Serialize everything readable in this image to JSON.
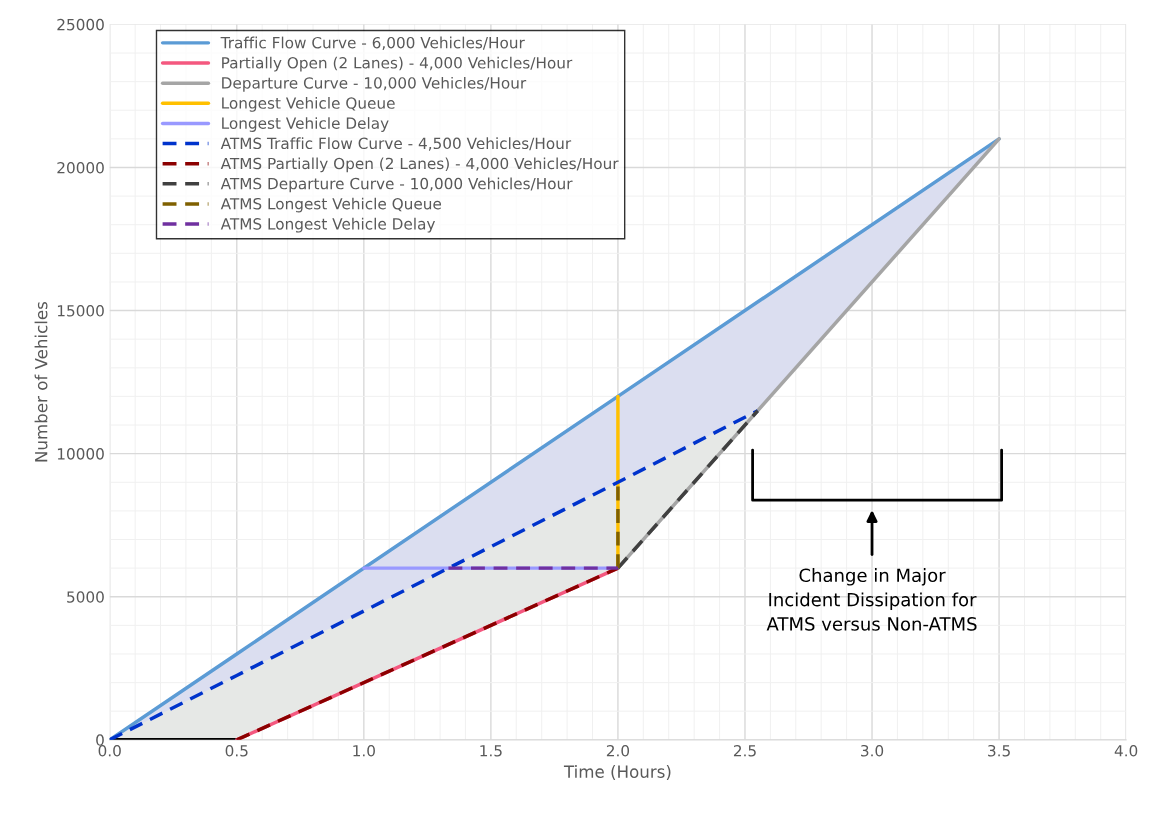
{
  "chart_data": {
    "type": "line",
    "xlabel": "Time (Hours)",
    "ylabel": "Number of Vehicles",
    "xlim": [
      0,
      4
    ],
    "ylim": [
      0,
      25000
    ],
    "xticks": [
      {
        "value": 0,
        "label": "0.0"
      },
      {
        "value": 0.5,
        "label": "0.5"
      },
      {
        "value": 1,
        "label": "1.0"
      },
      {
        "value": 1.5,
        "label": "1.5"
      },
      {
        "value": 2,
        "label": "2.0"
      },
      {
        "value": 2.5,
        "label": "2.5"
      },
      {
        "value": 3,
        "label": "3.0"
      },
      {
        "value": 3.5,
        "label": "3.5"
      },
      {
        "value": 4,
        "label": "4.0"
      }
    ],
    "yticks": [
      0,
      5000,
      10000,
      15000,
      20000,
      25000
    ],
    "grid": true,
    "legend": "top left",
    "annotations": [
      "Change in Major\nIncident Dissipation for\nATMS versus Non-ATMS"
    ],
    "series": [
      {
        "color": "#000000",
        "x": [
          0,
          0.5
        ],
        "values": [
          0,
          0
        ],
        "line_style": "solid"
      },
      {
        "name": "Traffic Flow Curve - 6,000 Vehicles/Hour",
        "color": "#5b9bd5",
        "x": [
          0,
          0.5,
          2,
          3.5
        ],
        "values": [
          0,
          3000,
          12000,
          21000
        ],
        "lower": [
          0,
          0,
          6000,
          21000
        ],
        "upper": [
          0,
          3000,
          12000,
          21000
        ],
        "line_style": "solid"
      },
      {
        "name": "Partially Open (2 Lanes) - 4,000 Vehicles/Hour",
        "color": "#f4587f",
        "x": [
          0.5,
          2
        ],
        "values": [
          0,
          6000
        ],
        "line_style": "solid"
      },
      {
        "name": "Departure Curve - 10,000 Vehicles/Hour",
        "color": "#a5a5a5",
        "x": [
          2,
          3.5
        ],
        "values": [
          6000,
          21000
        ],
        "line_style": "solid"
      },
      {
        "name": "Longest Vehicle Queue",
        "color": "#ffc000",
        "x": [
          2,
          2
        ],
        "values": [
          6000,
          12000
        ],
        "line_style": "solid"
      },
      {
        "name": "Longest Vehicle Delay",
        "color": "#9999ff",
        "x": [
          1,
          2
        ],
        "values": [
          6000,
          6000
        ],
        "line_style": "solid"
      },
      {
        "name": "ATMS Traffic Flow Curve - 4,500 Vehicles/Hour",
        "color": "#0033cc",
        "x": [
          0,
          0.5,
          2,
          2.55
        ],
        "values": [
          0,
          2250,
          9000,
          11500
        ],
        "lower": [
          0,
          0,
          6000,
          11500
        ],
        "upper": [
          0,
          2250,
          9000,
          11500
        ],
        "line_style": "dashed"
      },
      {
        "name": "ATMS Partially Open (2 Lanes) - 4,000 Vehicles/Hour",
        "color": "#8b0000",
        "x": [
          0.5,
          2
        ],
        "values": [
          0,
          6000
        ],
        "line_style": "dashed"
      },
      {
        "name": "ATMS Departure Curve - 10,000 Vehicles/Hour",
        "color": "#404040",
        "x": [
          2,
          2.55
        ],
        "values": [
          6000,
          11500
        ],
        "line_style": "dashed"
      },
      {
        "name": "ATMS Longest Vehicle Queue",
        "color": "#7f6000",
        "x": [
          2,
          2
        ],
        "values": [
          6000,
          9000
        ],
        "line_style": "dashed"
      },
      {
        "name": "ATMS Longest Vehicle Delay",
        "color": "#7030a0",
        "x": [
          1.333,
          2
        ],
        "values": [
          6000,
          6000
        ],
        "line_style": "dashed"
      }
    ]
  }
}
